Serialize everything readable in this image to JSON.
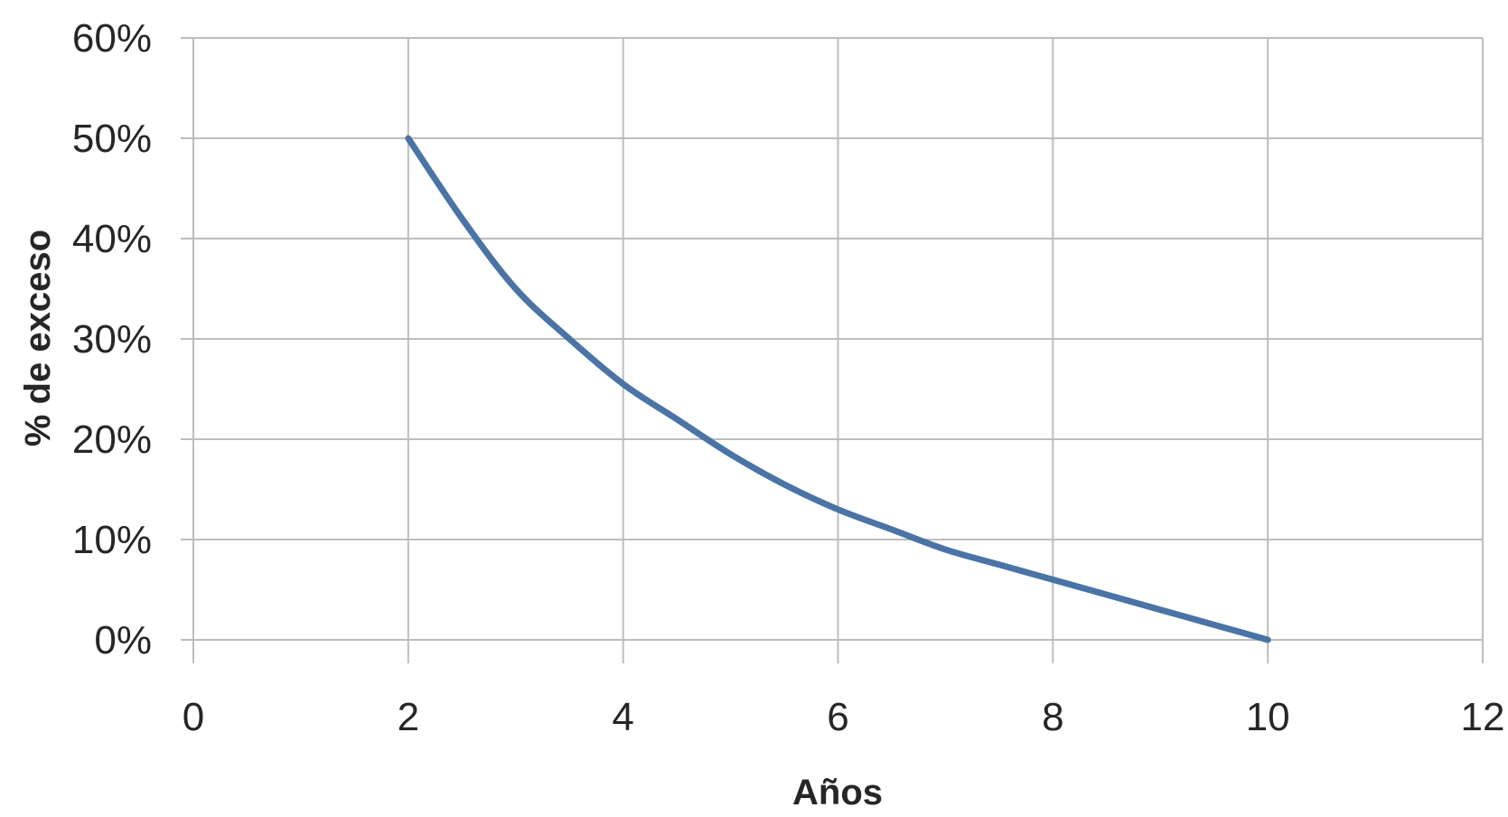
{
  "chart_data": {
    "type": "line",
    "title": "",
    "xlabel": "Años",
    "ylabel": "% de exceso",
    "xlim": [
      0,
      12
    ],
    "ylim": [
      0,
      60
    ],
    "x_ticks": [
      0,
      2,
      4,
      6,
      8,
      10,
      12
    ],
    "x_tick_labels": [
      "0",
      "2",
      "4",
      "6",
      "8",
      "10",
      "12"
    ],
    "y_ticks": [
      0,
      10,
      20,
      30,
      40,
      50,
      60
    ],
    "y_tick_labels": [
      "0%",
      "10%",
      "20%",
      "30%",
      "40%",
      "50%",
      "60%"
    ],
    "grid": true,
    "legend": "none",
    "series": [
      {
        "color": "#4a73a6",
        "x": [
          2,
          2.5,
          3,
          3.5,
          4,
          4.5,
          5,
          5.5,
          6,
          6.5,
          7,
          7.5,
          8,
          8.5,
          9,
          9.5,
          10
        ],
        "y": [
          50,
          42,
          35,
          30,
          25.5,
          22,
          18.5,
          15.5,
          13,
          11,
          9,
          7.5,
          6,
          4.5,
          3,
          1.5,
          0
        ]
      }
    ]
  }
}
